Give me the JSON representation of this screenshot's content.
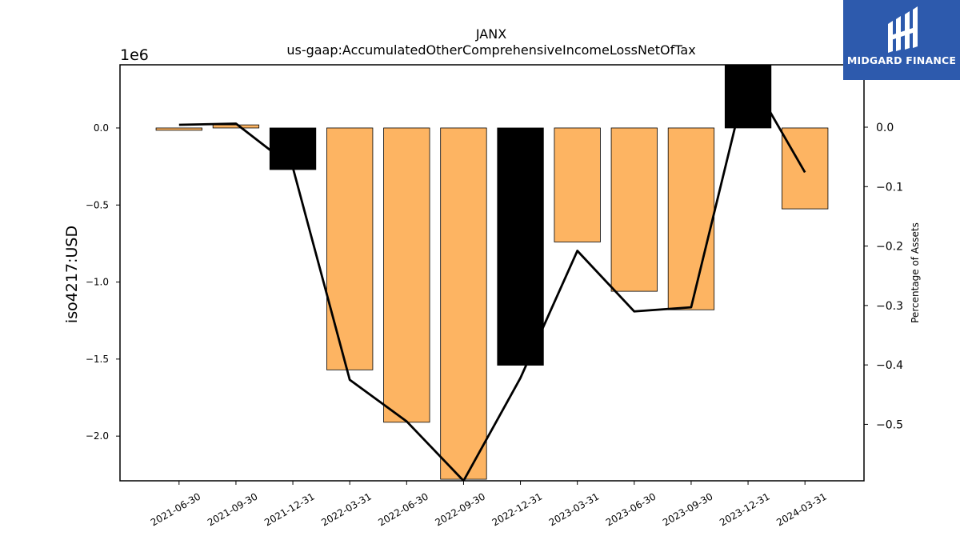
{
  "chart_data": {
    "type": "bar",
    "title": "JANX",
    "subtitle": "us-gaap:AccumulatedOtherComprehensiveIncomeLossNetOfTax",
    "ylabel": "iso4217:USD",
    "y2label": "Percentage of Assets",
    "y_offset_label": "1e6",
    "categories": [
      "2021-06-30",
      "2021-09-30",
      "2021-12-31",
      "2022-03-31",
      "2022-06-30",
      "2022-09-30",
      "2022-12-31",
      "2023-03-31",
      "2023-06-30",
      "2023-09-30",
      "2023-12-31",
      "2024-03-31"
    ],
    "series": [
      {
        "type": "bar",
        "axis": "left",
        "values": [
          -15000,
          20000,
          -270000,
          -1570000,
          -1910000,
          -2280000,
          -1540000,
          -740000,
          -1060000,
          -1180000,
          410000,
          -525000
        ],
        "colors": [
          "#fdb462",
          "#fdb462",
          "#000000",
          "#fdb462",
          "#fdb462",
          "#fdb462",
          "#000000",
          "#fdb462",
          "#fdb462",
          "#fdb462",
          "#000000",
          "#fdb462"
        ]
      },
      {
        "type": "line",
        "axis": "right",
        "values": [
          0.004,
          0.006,
          -0.068,
          -0.425,
          -0.495,
          -0.595,
          -0.422,
          -0.208,
          -0.31,
          -0.303,
          0.09,
          -0.076
        ],
        "color": "#000000"
      }
    ],
    "ylim": [
      -2290000,
      410000
    ],
    "y2lim": [
      -0.595,
      0.105
    ],
    "yticks": [
      0.0,
      -0.5,
      -1.0,
      -1.5,
      -2.0
    ],
    "ytick_labels": [
      "0.0",
      "−0.5",
      "−1.0",
      "−1.5",
      "−2.0"
    ],
    "y2ticks": [
      0.0,
      -0.1,
      -0.2,
      -0.3,
      -0.4,
      -0.5
    ],
    "y2tick_labels": [
      "0.0",
      "−0.1",
      "−0.2",
      "−0.3",
      "−0.4",
      "−0.5"
    ],
    "grid": false,
    "legend": "none"
  },
  "logo": {
    "text": "MIDGARD FINANCE",
    "color": "#2d5aad"
  }
}
